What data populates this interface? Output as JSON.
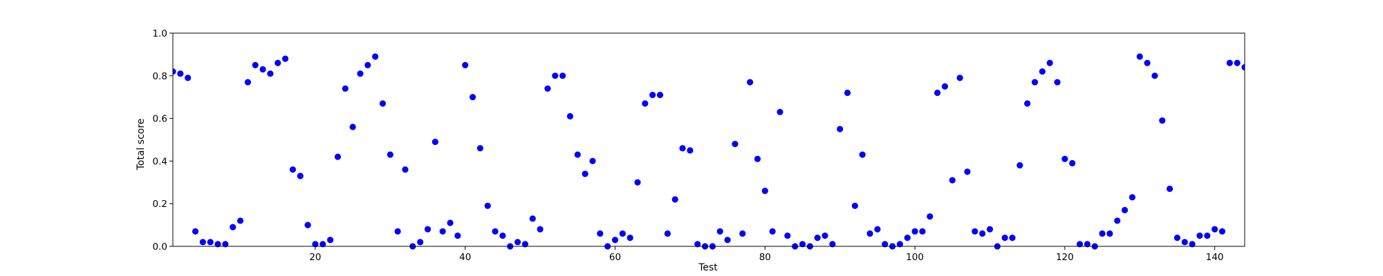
{
  "chart_data": {
    "type": "scatter",
    "xlabel": "Test",
    "ylabel": "Total score",
    "xlim": [
      1,
      144
    ],
    "ylim": [
      0,
      1.0
    ],
    "x_ticks": [
      20,
      40,
      60,
      80,
      100,
      120,
      140
    ],
    "x_tick_labels": [
      "20",
      "40",
      "60",
      "80",
      "100",
      "120",
      "140"
    ],
    "y_ticks": [
      0,
      0.2,
      0.4,
      0.6,
      0.8,
      1.0
    ],
    "y_tick_labels": [
      "0.0",
      "0.2",
      "0.4",
      "0.6",
      "0.8",
      "1.0"
    ],
    "grid": false,
    "marker_color": "#0000ff",
    "series": [
      {
        "x": [
          1,
          2,
          3,
          4,
          5,
          6,
          7,
          8,
          9,
          10,
          11,
          12,
          13,
          14,
          15,
          16,
          17,
          18,
          19,
          20,
          21,
          22,
          23,
          24,
          25,
          26,
          27,
          28,
          29,
          30,
          31,
          32,
          33,
          34,
          35,
          36,
          37,
          38,
          39,
          40,
          41,
          42,
          43,
          44,
          45,
          46,
          47,
          48,
          49,
          50,
          51,
          52,
          53,
          54,
          55,
          56,
          57,
          58,
          59,
          60,
          61,
          62,
          63,
          64,
          65,
          66,
          67,
          68,
          69,
          70,
          71,
          72,
          73,
          74,
          75,
          76,
          77,
          78,
          79,
          80,
          81,
          82,
          83,
          84,
          85,
          86,
          87,
          88,
          89,
          90,
          91,
          92,
          93,
          94,
          95,
          96,
          97,
          98,
          99,
          100,
          101,
          102,
          103,
          104,
          105,
          106,
          107,
          108,
          109,
          110,
          111,
          112,
          113,
          114,
          115,
          116,
          117,
          118,
          119,
          120,
          121,
          122,
          123,
          124,
          125,
          126,
          127,
          128,
          129,
          130,
          131,
          132,
          133,
          134,
          135,
          136,
          137,
          138,
          139,
          140,
          141,
          142,
          143,
          144
        ],
        "y": [
          0.82,
          0.81,
          0.79,
          0.07,
          0.02,
          0.02,
          0.01,
          0.01,
          0.09,
          0.12,
          0.77,
          0.85,
          0.83,
          0.81,
          0.86,
          0.88,
          0.36,
          0.33,
          0.1,
          0.01,
          0.01,
          0.03,
          0.42,
          0.74,
          0.56,
          0.81,
          0.85,
          0.89,
          0.67,
          0.43,
          0.07,
          0.36,
          0.0,
          0.02,
          0.08,
          0.49,
          0.07,
          0.11,
          0.05,
          0.85,
          0.7,
          0.46,
          0.19,
          0.07,
          0.05,
          0.0,
          0.02,
          0.01,
          0.13,
          0.08,
          0.74,
          0.8,
          0.8,
          0.61,
          0.43,
          0.34,
          0.4,
          0.06,
          0.0,
          0.03,
          0.06,
          0.04,
          0.3,
          0.67,
          0.71,
          0.71,
          0.06,
          0.22,
          0.46,
          0.45,
          0.01,
          0.0,
          0.0,
          0.07,
          0.03,
          0.48,
          0.06,
          0.77,
          0.41,
          0.26,
          0.07,
          0.63,
          0.05,
          0.0,
          0.01,
          0.0,
          0.04,
          0.05,
          0.01,
          0.55,
          0.72,
          0.19,
          0.43,
          0.06,
          0.08,
          0.01,
          0.0,
          0.01,
          0.04,
          0.07,
          0.07,
          0.14,
          0.72,
          0.75,
          0.31,
          0.79,
          0.35,
          0.07,
          0.06,
          0.08,
          0.0,
          0.04,
          0.04,
          0.38,
          0.67,
          0.77,
          0.82,
          0.86,
          0.77,
          0.41,
          0.39,
          0.01,
          0.01,
          0.0,
          0.06,
          0.06,
          0.12,
          0.17,
          0.23,
          0.89,
          0.86,
          0.8,
          0.59,
          0.27,
          0.04,
          0.02,
          0.01,
          0.05,
          0.05,
          0.08,
          0.07,
          0.86,
          0.86,
          0.84
        ]
      }
    ]
  }
}
